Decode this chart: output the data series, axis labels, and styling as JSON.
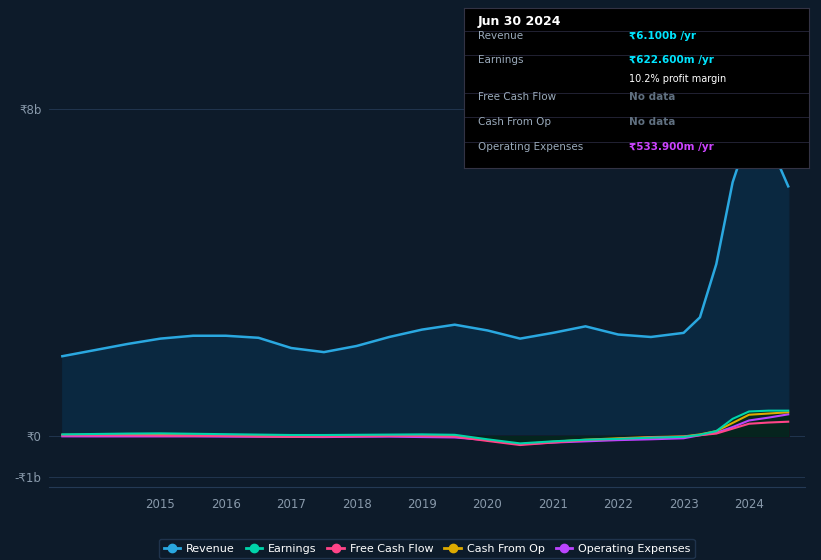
{
  "background_color": "#0d1b2a",
  "plot_bg_color": "#0d1b2a",
  "grid_color": "#243a55",
  "title_box": {
    "title": "Jun 30 2024",
    "rows": [
      {
        "label": "Revenue",
        "value": "₹6.100b /yr",
        "value_color": "#00e5ff",
        "sub": null
      },
      {
        "label": "Earnings",
        "value": "₹622.600m /yr",
        "value_color": "#00e5ff",
        "sub": "10.2% profit margin"
      },
      {
        "label": "Free Cash Flow",
        "value": "No data",
        "value_color": "#607080",
        "sub": null
      },
      {
        "label": "Cash From Op",
        "value": "No data",
        "value_color": "#607080",
        "sub": null
      },
      {
        "label": "Operating Expenses",
        "value": "₹533.900m /yr",
        "value_color": "#cc44ff",
        "sub": null
      }
    ]
  },
  "xlim": [
    2013.3,
    2024.85
  ],
  "ylim": [
    -1250000000.0,
    8600000000.0
  ],
  "ytick_labels": [
    "-₹1b",
    "₹0",
    "₹8b"
  ],
  "ytick_values": [
    -1000000000.0,
    0,
    8000000000.0
  ],
  "xtick_years": [
    2015,
    2016,
    2017,
    2018,
    2019,
    2020,
    2021,
    2022,
    2023,
    2024
  ],
  "series": {
    "revenue": {
      "color": "#2aa8e0",
      "fill_color": "#0a2840",
      "years": [
        2013.5,
        2014.0,
        2014.5,
        2015.0,
        2015.5,
        2016.0,
        2016.5,
        2017.0,
        2017.5,
        2018.0,
        2018.5,
        2019.0,
        2019.5,
        2020.0,
        2020.5,
        2021.0,
        2021.5,
        2022.0,
        2022.5,
        2023.0,
        2023.25,
        2023.5,
        2023.75,
        2024.0,
        2024.3,
        2024.6
      ],
      "values": [
        1950000000.0,
        2100000000.0,
        2250000000.0,
        2380000000.0,
        2450000000.0,
        2450000000.0,
        2400000000.0,
        2150000000.0,
        2050000000.0,
        2200000000.0,
        2420000000.0,
        2600000000.0,
        2720000000.0,
        2580000000.0,
        2380000000.0,
        2520000000.0,
        2680000000.0,
        2480000000.0,
        2420000000.0,
        2520000000.0,
        2900000000.0,
        4200000000.0,
        6200000000.0,
        7400000000.0,
        7200000000.0,
        6100000000.0
      ]
    },
    "earnings": {
      "color": "#00d4aa",
      "fill_color": "#002a20",
      "years": [
        2013.5,
        2014.0,
        2014.5,
        2015.0,
        2015.5,
        2016.0,
        2016.5,
        2017.0,
        2017.5,
        2018.0,
        2018.5,
        2019.0,
        2019.5,
        2020.0,
        2020.5,
        2021.0,
        2021.5,
        2022.0,
        2022.5,
        2023.0,
        2023.25,
        2023.5,
        2023.75,
        2024.0,
        2024.3,
        2024.6
      ],
      "values": [
        40000000.0,
        50000000.0,
        60000000.0,
        65000000.0,
        55000000.0,
        45000000.0,
        35000000.0,
        25000000.0,
        25000000.0,
        30000000.0,
        35000000.0,
        40000000.0,
        30000000.0,
        -80000000.0,
        -180000000.0,
        -130000000.0,
        -90000000.0,
        -70000000.0,
        -40000000.0,
        -20000000.0,
        30000000.0,
        120000000.0,
        420000000.0,
        600000000.0,
        620000000.0,
        620000000.0
      ]
    },
    "free_cash_flow": {
      "color": "#ff4488",
      "fill_color": "#2a0018",
      "years": [
        2013.5,
        2014.0,
        2014.5,
        2015.0,
        2015.5,
        2016.0,
        2016.5,
        2017.0,
        2017.5,
        2018.0,
        2018.5,
        2019.0,
        2019.5,
        2020.0,
        2020.5,
        2021.0,
        2021.5,
        2022.0,
        2022.5,
        2023.0,
        2023.25,
        2023.5,
        2023.75,
        2024.0,
        2024.3,
        2024.6
      ],
      "values": [
        15000000.0,
        15000000.0,
        15000000.0,
        10000000.0,
        8000000.0,
        0.0,
        -10000000.0,
        -15000000.0,
        -15000000.0,
        -8000000.0,
        0.0,
        0.0,
        -15000000.0,
        -120000000.0,
        -220000000.0,
        -160000000.0,
        -100000000.0,
        -70000000.0,
        -35000000.0,
        -15000000.0,
        20000000.0,
        60000000.0,
        180000000.0,
        300000000.0,
        330000000.0,
        350000000.0
      ]
    },
    "cash_from_op": {
      "color": "#ddaa00",
      "fill_color": "#2a2000",
      "years": [
        2013.5,
        2014.0,
        2014.5,
        2015.0,
        2015.5,
        2016.0,
        2016.5,
        2017.0,
        2017.5,
        2018.0,
        2018.5,
        2019.0,
        2019.5,
        2020.0,
        2020.5,
        2021.0,
        2021.5,
        2022.0,
        2022.5,
        2023.0,
        2023.25,
        2023.5,
        2023.75,
        2024.0,
        2024.3,
        2024.6
      ],
      "values": [
        30000000.0,
        35000000.0,
        35000000.0,
        25000000.0,
        18000000.0,
        10000000.0,
        0.0,
        -8000000.0,
        0.0,
        8000000.0,
        15000000.0,
        25000000.0,
        10000000.0,
        -100000000.0,
        -200000000.0,
        -140000000.0,
        -90000000.0,
        -55000000.0,
        -25000000.0,
        -10000000.0,
        40000000.0,
        120000000.0,
        320000000.0,
        520000000.0,
        550000000.0,
        580000000.0
      ]
    },
    "operating_expenses": {
      "color": "#bb44ff",
      "fill_color": "#1a0030",
      "years": [
        2013.5,
        2014.0,
        2014.5,
        2015.0,
        2015.5,
        2016.0,
        2016.5,
        2017.0,
        2017.5,
        2018.0,
        2018.5,
        2019.0,
        2019.5,
        2020.0,
        2020.5,
        2021.0,
        2021.5,
        2022.0,
        2022.5,
        2023.0,
        2023.25,
        2023.5,
        2023.75,
        2024.0,
        2024.3,
        2024.6
      ],
      "values": [
        -8000000.0,
        -10000000.0,
        -10000000.0,
        -10000000.0,
        -10000000.0,
        -15000000.0,
        -18000000.0,
        -22000000.0,
        -25000000.0,
        -18000000.0,
        -15000000.0,
        -25000000.0,
        -35000000.0,
        -100000000.0,
        -200000000.0,
        -160000000.0,
        -130000000.0,
        -100000000.0,
        -80000000.0,
        -55000000.0,
        20000000.0,
        80000000.0,
        220000000.0,
        380000000.0,
        450000000.0,
        530000000.0
      ]
    }
  },
  "legend": [
    {
      "label": "Revenue",
      "color": "#2aa8e0"
    },
    {
      "label": "Earnings",
      "color": "#00d4aa"
    },
    {
      "label": "Free Cash Flow",
      "color": "#ff4488"
    },
    {
      "label": "Cash From Op",
      "color": "#ddaa00"
    },
    {
      "label": "Operating Expenses",
      "color": "#bb44ff"
    }
  ]
}
